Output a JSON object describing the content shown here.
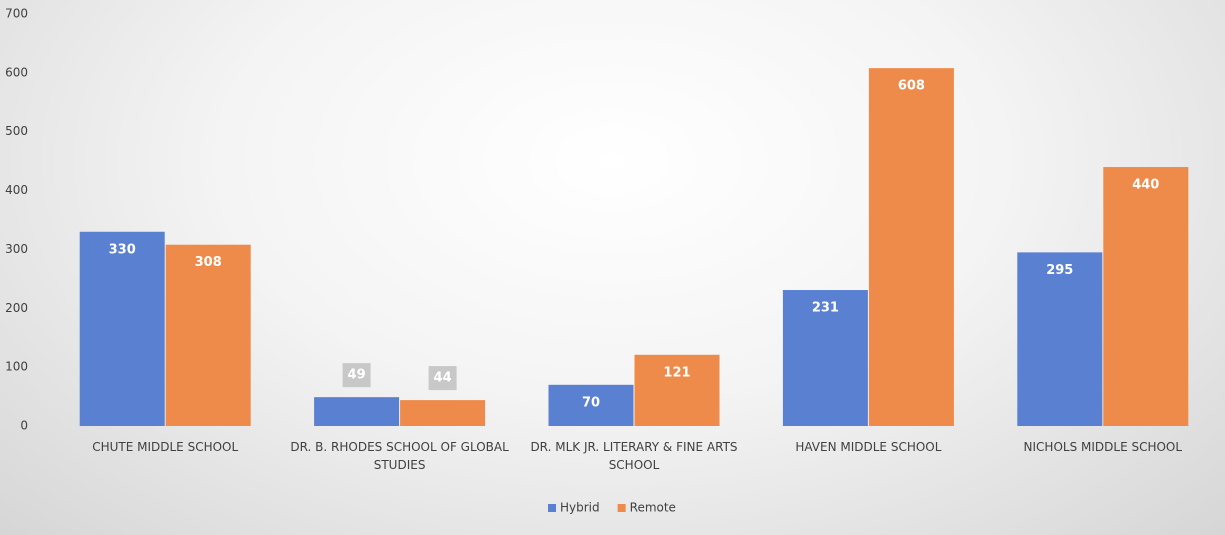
{
  "chart_data": {
    "type": "bar",
    "categories": [
      "CHUTE MIDDLE SCHOOL",
      "DR. B. RHODES SCHOOL OF GLOBAL STUDIES",
      "DR. MLK JR. LITERARY & FINE ARTS SCHOOL",
      "HAVEN MIDDLE SCHOOL",
      "NICHOLS MIDDLE SCHOOL"
    ],
    "series": [
      {
        "name": "Hybrid",
        "color": "#5a80d2",
        "values": [
          330,
          49,
          70,
          231,
          295
        ]
      },
      {
        "name": "Remote",
        "color": "#ee8b4b",
        "values": [
          308,
          44,
          121,
          608,
          440
        ]
      }
    ],
    "ylim": [
      0,
      700
    ],
    "yticks": [
      0,
      100,
      200,
      300,
      400,
      500,
      600,
      700
    ],
    "grid": false,
    "legend": "bottom"
  }
}
